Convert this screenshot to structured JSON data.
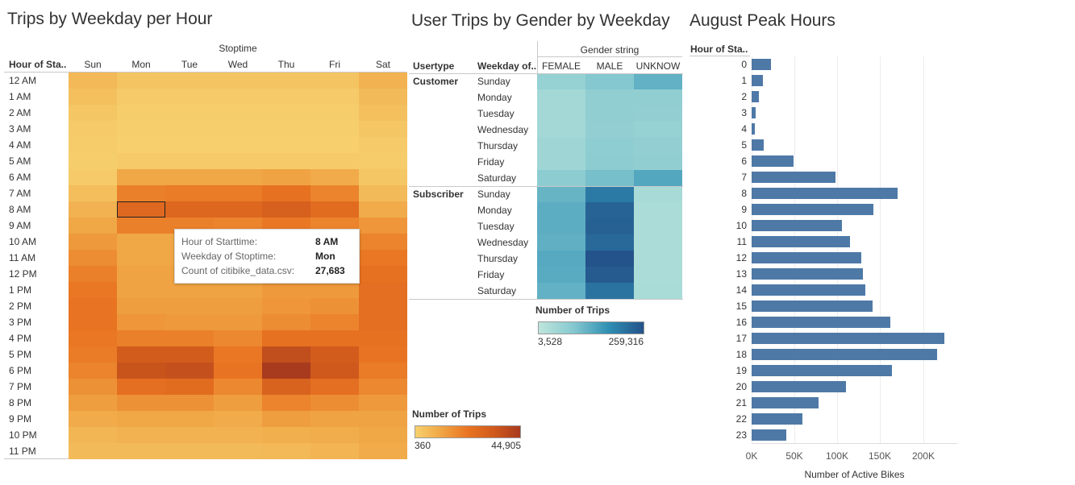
{
  "chart_data": [
    {
      "type": "heatmap",
      "title": "Trips by Weekday per Hour",
      "column_header": "Stoptime",
      "row_header": "Hour of Sta..",
      "columns": [
        "Sun",
        "Mon",
        "Tue",
        "Wed",
        "Thu",
        "Fri",
        "Sat"
      ],
      "rows": [
        "12 AM",
        "1 AM",
        "2 AM",
        "3 AM",
        "4 AM",
        "5 AM",
        "6 AM",
        "7 AM",
        "8 AM",
        "9 AM",
        "10 AM",
        "11 AM",
        "12 PM",
        "1 PM",
        "2 PM",
        "3 PM",
        "4 PM",
        "5 PM",
        "6 PM",
        "7 PM",
        "8 PM",
        "9 PM",
        "10 PM",
        "11 PM"
      ],
      "values": [
        [
          6500,
          3500,
          3500,
          3500,
          3500,
          3500,
          8000
        ],
        [
          4500,
          2000,
          2000,
          2000,
          2000,
          2000,
          6000
        ],
        [
          3000,
          1200,
          1200,
          1200,
          1200,
          1200,
          4500
        ],
        [
          2000,
          1000,
          1000,
          1000,
          1000,
          1000,
          3000
        ],
        [
          1500,
          700,
          700,
          700,
          700,
          700,
          2000
        ],
        [
          1200,
          2000,
          2000,
          2000,
          2000,
          2000,
          1500
        ],
        [
          2000,
          11000,
          11000,
          11000,
          12000,
          10000,
          3000
        ],
        [
          5000,
          20000,
          21000,
          21000,
          24000,
          19000,
          6000
        ],
        [
          8000,
          27683,
          28000,
          28000,
          31000,
          26000,
          10000
        ],
        [
          11000,
          20000,
          20000,
          19000,
          22000,
          19000,
          15000
        ],
        [
          14000,
          11000,
          11000,
          11000,
          13000,
          12000,
          19000
        ],
        [
          17000,
          11000,
          11000,
          11000,
          13000,
          12000,
          22000
        ],
        [
          20000,
          12000,
          12000,
          12000,
          14000,
          14000,
          24000
        ],
        [
          22000,
          12000,
          12000,
          12000,
          14000,
          14000,
          25000
        ],
        [
          23000,
          13000,
          13000,
          13000,
          15000,
          16000,
          25000
        ],
        [
          23000,
          15000,
          14000,
          14000,
          17000,
          19000,
          25000
        ],
        [
          22000,
          20000,
          20000,
          18000,
          24000,
          24000,
          24000
        ],
        [
          21000,
          33000,
          33000,
          22000,
          38000,
          33000,
          23000
        ],
        [
          19000,
          36000,
          37000,
          23000,
          44905,
          34000,
          21000
        ],
        [
          16000,
          25000,
          26000,
          18000,
          30000,
          25000,
          18000
        ],
        [
          13000,
          16000,
          16000,
          13000,
          19000,
          17000,
          14000
        ],
        [
          10000,
          11000,
          11000,
          10000,
          13000,
          12000,
          12000
        ],
        [
          7000,
          8000,
          8000,
          8000,
          9000,
          9500,
          11000
        ],
        [
          6000,
          6000,
          6000,
          6000,
          6500,
          7500,
          10000
        ]
      ],
      "legend": {
        "title": "Number of Trips",
        "min_label": "360",
        "max_label": "44,905",
        "min": 360,
        "max": 44905
      },
      "colors": [
        "#f7d06e",
        "#f0a544",
        "#e97422",
        "#d05a1c",
        "#a83a1e"
      ],
      "highlight": {
        "row": "8 AM",
        "column": "Mon"
      },
      "tooltip": [
        {
          "label": "Hour of Starttime:",
          "value": "8 AM"
        },
        {
          "label": "Weekday of Stoptime:",
          "value": "Mon"
        },
        {
          "label": "Count of citibike_data.csv:",
          "value": "27,683"
        }
      ]
    },
    {
      "type": "heatmap",
      "title": "User Trips by Gender by Weekday",
      "column_header": "Gender string",
      "row_headers": [
        "Usertype",
        "Weekday of.."
      ],
      "columns": [
        "FEMALE",
        "MALE",
        "UNKNOW"
      ],
      "groups": [
        {
          "name": "Customer",
          "rows": [
            "Sunday",
            "Monday",
            "Tuesday",
            "Wednesday",
            "Thursday",
            "Friday",
            "Saturday"
          ],
          "values": [
            [
              18000,
              32000,
              60000
            ],
            [
              10000,
              22000,
              22000
            ],
            [
              10000,
              22000,
              20000
            ],
            [
              10000,
              20000,
              18000
            ],
            [
              12000,
              24000,
              20000
            ],
            [
              12000,
              25000,
              22000
            ],
            [
              25000,
              42000,
              75000
            ]
          ]
        },
        {
          "name": "Subscriber",
          "rows": [
            "Sunday",
            "Monday",
            "Tuesday",
            "Wednesday",
            "Thursday",
            "Friday",
            "Saturday"
          ],
          "values": [
            [
              55000,
              160000,
              8000
            ],
            [
              65000,
              215000,
              7000
            ],
            [
              65000,
              220000,
              7000
            ],
            [
              62000,
              200000,
              6500
            ],
            [
              72000,
              259316,
              7000
            ],
            [
              68000,
              235000,
              7000
            ],
            [
              60000,
              175000,
              7500
            ]
          ]
        }
      ],
      "legend": {
        "title": "Number of Trips",
        "min_label": "3,528",
        "max_label": "259,316",
        "min": 3528,
        "max": 259316
      },
      "colors": [
        "#bfe6dc",
        "#85c8cf",
        "#2f8fb3",
        "#24528a"
      ]
    },
    {
      "type": "bar",
      "orientation": "horizontal",
      "title": "August Peak Hours",
      "ylabel": "Hour of Sta..",
      "xlabel": "Number of Active Bikes",
      "categories": [
        "0",
        "1",
        "2",
        "3",
        "4",
        "5",
        "6",
        "7",
        "8",
        "9",
        "10",
        "11",
        "12",
        "13",
        "14",
        "15",
        "16",
        "17",
        "18",
        "19",
        "20",
        "21",
        "22",
        "23"
      ],
      "values": [
        23000,
        13000,
        8000,
        4500,
        4000,
        14000,
        49000,
        98000,
        170000,
        142000,
        105000,
        115000,
        128000,
        130000,
        133000,
        141000,
        162000,
        225000,
        216000,
        164000,
        110000,
        78000,
        59000,
        40000
      ],
      "xlim": [
        0,
        240000
      ],
      "xticks": [
        0,
        50000,
        100000,
        150000,
        200000
      ],
      "xtick_labels": [
        "0K",
        "50K",
        "100K",
        "150K",
        "200K"
      ],
      "color": "#4e79a7"
    }
  ]
}
